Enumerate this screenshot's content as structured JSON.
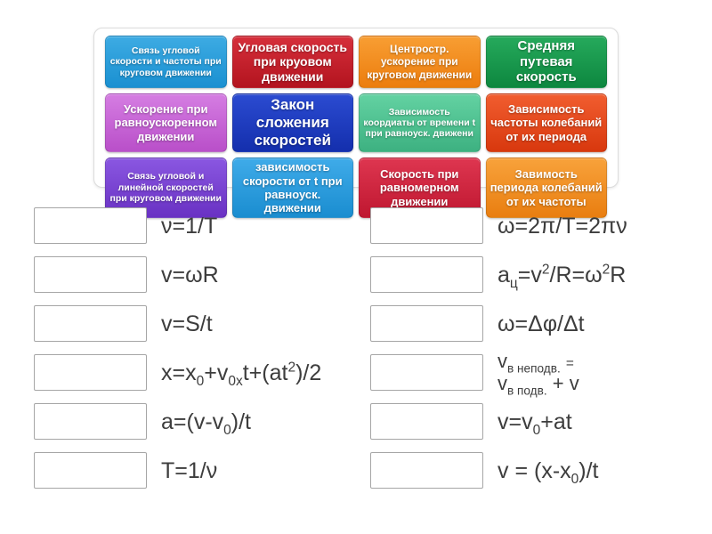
{
  "tile_board": {
    "tiles": [
      {
        "label": "Связь угловой скорости и частоты при круговом движении",
        "grad_top": "#3dabe3",
        "grad_bottom": "#1a90d1",
        "text_size": 10.5
      },
      {
        "label": "Угловая скорость при круовом движении",
        "grad_top": "#d62f3b",
        "grad_bottom": "#b3141f",
        "text_size": 14
      },
      {
        "label": "Центростр. ускорение при круговом движении",
        "grad_top": "#f89e33",
        "grad_bottom": "#ec7d0e",
        "text_size": 12
      },
      {
        "label": "Средняя путевая скорость",
        "grad_top": "#26aa5c",
        "grad_bottom": "#0d873f",
        "text_size": 15
      },
      {
        "label": "Ускорение при равноускоренном движении",
        "grad_top": "#d57de2",
        "grad_bottom": "#b94fc9",
        "text_size": 13
      },
      {
        "label": "Закон сложения скоростей",
        "grad_top": "#2b4bd1",
        "grad_bottom": "#142fad",
        "text_size": 17
      },
      {
        "label": "Зависимость коордиаты от времени t при равноуск. движени",
        "grad_top": "#63d2a2",
        "grad_bottom": "#3db181",
        "text_size": 10.5
      },
      {
        "label": "Зависимость частоты колебаний от их периода",
        "grad_top": "#f15d2f",
        "grad_bottom": "#d8380e",
        "text_size": 13
      },
      {
        "label": "Связь угловой и линейной скоростей при круговом движении",
        "grad_top": "#8a57e1",
        "grad_bottom": "#6931c3",
        "text_size": 10.5
      },
      {
        "label": "зависимость скорости от t при равноуск. движении",
        "grad_top": "#3fabe9",
        "grad_bottom": "#1a8dd0",
        "text_size": 13
      },
      {
        "label": "Скорость при равномерном движении",
        "grad_top": "#de3650",
        "grad_bottom": "#bf1730",
        "text_size": 13
      },
      {
        "label": "Завимость периода колебаний от их частоты",
        "grad_top": "#f8a23b",
        "grad_bottom": "#e97e10",
        "text_size": 13
      }
    ]
  },
  "match_rows": {
    "left": [
      {
        "formula_html": "ν=1/T"
      },
      {
        "formula_html": "v=ωR"
      },
      {
        "formula_html": "v=S/t"
      },
      {
        "formula_html": "x=x<sub>0</sub>+v<sub>0x</sub>t+(at<sup>2</sup>)/2"
      },
      {
        "formula_html": "a=(v-v<sub>0</sub>)/t"
      },
      {
        "formula_html": "T=1/ν"
      }
    ],
    "right": [
      {
        "formula_html": "ω=2π/T=2πν"
      },
      {
        "formula_html": "a<sub>ц</sub>=v<sup>2</sup>/R=ω<sup>2</sup>R"
      },
      {
        "formula_html": "ω=Δφ/Δt"
      },
      {
        "formula_html": "v<sub>в неподв.</sub> <span class='eq-sm'>=</span><br>v<sub>в подв.</sub> + v",
        "font_size": 22
      },
      {
        "formula_html": "v=v<sub>0</sub>+at"
      },
      {
        "formula_html": "v = (x-x<sub>0</sub>)/t"
      }
    ]
  },
  "colors": {
    "page_background": "#ffffff",
    "board_border": "#dcdcdc",
    "dropzone_border": "#a6a6a6",
    "formula_text": "#3d3d3d",
    "tile_text": "#ffffff"
  }
}
